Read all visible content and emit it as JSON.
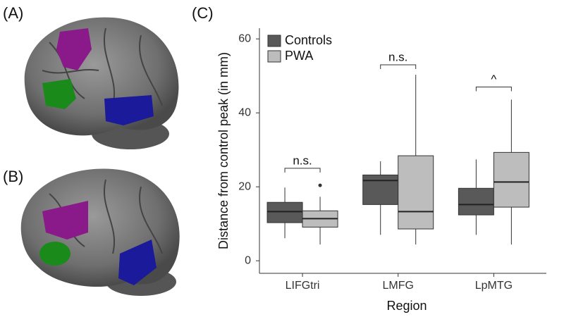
{
  "panel_labels": [
    "(A)",
    "(B)",
    "(C)"
  ],
  "chart_data": {
    "type": "box",
    "x_label": "Region",
    "y_label": "Distance from control peak (in mm)",
    "categories": [
      "LIFGtri",
      "LMFG",
      "LpMTG"
    ],
    "series": [
      {
        "name": "Controls",
        "color": "#595959",
        "min": [
          6.1,
          7.0,
          7.0
        ],
        "q1": [
          10.3,
          15.2,
          12.4
        ],
        "median": [
          13.3,
          21.7,
          15.2
        ],
        "q3": [
          15.8,
          23.2,
          19.6
        ],
        "max": [
          19.8,
          26.9,
          27.4
        ],
        "outliers": [
          [],
          [],
          []
        ]
      },
      {
        "name": "PWA",
        "color": "#bdbdbd",
        "min": [
          4.4,
          4.4,
          4.4
        ],
        "q1": [
          9.1,
          8.6,
          14.5
        ],
        "median": [
          11.4,
          13.3,
          21.3
        ],
        "q3": [
          13.5,
          28.4,
          29.3
        ],
        "max": [
          17.3,
          50.3,
          43.6
        ],
        "outliers": [
          [
            20.4
          ],
          [],
          []
        ]
      }
    ],
    "annotations": [
      {
        "text": "n.s.",
        "category": 0,
        "y": 25
      },
      {
        "text": "n.s.",
        "category": 1,
        "y": 53
      },
      {
        "text": "^",
        "category": 2,
        "y": 47
      }
    ],
    "ylim": [
      -3.4,
      62.9
    ],
    "yticks": [
      0,
      20,
      40,
      60
    ],
    "legend": "top-left"
  }
}
